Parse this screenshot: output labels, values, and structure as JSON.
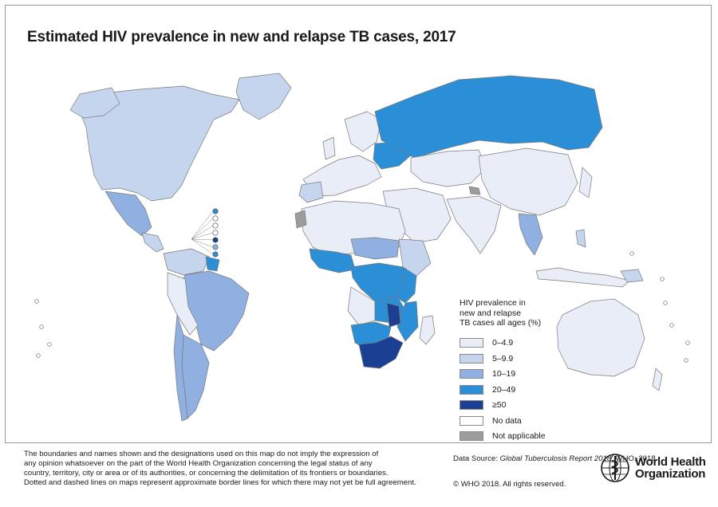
{
  "title": "Estimated HIV prevalence in new and relapse TB cases, 2017",
  "colors": {
    "ocean": "#ffffff",
    "border": "#7a7a7a",
    "c0_4_9": "#e8edf7",
    "c5_9_9": "#c6d5ee",
    "c10_19": "#8fb0e0",
    "c20_49": "#2a8fd6",
    "c50plus": "#1a3f93",
    "no_data": "#ffffff",
    "not_applicable": "#9c9c9c"
  },
  "legend": {
    "title_lines": [
      "HIV prevalence in",
      "new and relapse",
      "TB cases all ages (%)"
    ],
    "items": [
      {
        "label": "0–4.9",
        "color": "#e8edf7"
      },
      {
        "label": "5–9.9",
        "color": "#c6d5ee"
      },
      {
        "label": "10–19",
        "color": "#8fb0e0"
      },
      {
        "label": "20–49",
        "color": "#2a8fd6"
      },
      {
        "label": "≥50",
        "color": "#1a3f93"
      },
      {
        "label": "No data",
        "color": "#ffffff"
      },
      {
        "label": "Not applicable",
        "color": "#9c9c9c"
      }
    ]
  },
  "disclaimer_lines": [
    "The boundaries and names shown and the designations used on this map do not imply the expression of",
    "any opinion whatsoever on the part of the World Health Organization concerning the legal status of any",
    "country, territory, city or area or of its authorities, or concerning the delimitation of its frontiers or boundaries.",
    "Dotted and dashed lines on maps represent approximate border lines for which there may not yet be full agreement."
  ],
  "source": {
    "prefix": "Data Source: ",
    "italic": "Global Tuberculosis Report 2018.",
    "suffix": " WHO, 2018."
  },
  "copyright": "© WHO 2018. All rights reserved.",
  "who": {
    "line1": "World Health",
    "line2": "Organization"
  }
}
